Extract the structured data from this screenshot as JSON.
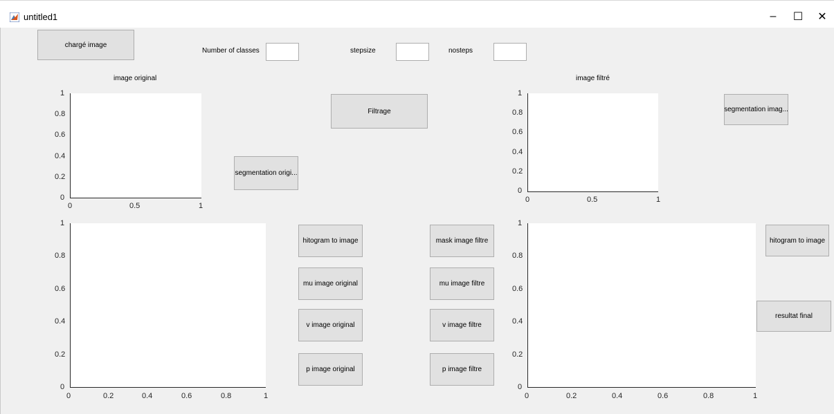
{
  "window": {
    "title": "untitled1",
    "minimize": "–",
    "maximize": "☐",
    "close": "✕"
  },
  "controls": {
    "charge_button": "chargé image",
    "classes_label": "Number of classes",
    "classes_value": "",
    "stepsize_label": "stepsize",
    "stepsize_value": "",
    "nosteps_label": "nosteps",
    "nosteps_value": "",
    "filtrage_button": "Filtrage",
    "seg_orig_button": "segmentation origi...",
    "seg_img_button": "segmentation imag...",
    "histo_left_button": "hitogram to image",
    "mask_button": "mask image filtre",
    "mu_orig_button": "mu image original",
    "mu_filtre_button": "mu image filtre",
    "v_orig_button": "v image original",
    "v_filtre_button": "v image filtre",
    "p_orig_button": "p image original",
    "p_filtre_button": "p image filtre",
    "histo_right_button": "hitogram to image",
    "resultat_button": "resultat final"
  },
  "labels": {
    "image_original": "image original",
    "image_filtre": "image filtré"
  },
  "axes": {
    "original": {
      "yticks": [
        "1",
        "0.8",
        "0.6",
        "0.4",
        "0.2",
        "0"
      ],
      "xticks": [
        "0",
        "0.5",
        "1"
      ]
    },
    "filtre": {
      "yticks": [
        "1",
        "0.8",
        "0.6",
        "0.4",
        "0.2",
        "0"
      ],
      "xticks": [
        "0",
        "0.5",
        "1"
      ]
    },
    "bottom_left": {
      "yticks": [
        "1",
        "0.8",
        "0.6",
        "0.4",
        "0.2",
        "0"
      ],
      "xticks": [
        "0",
        "0.2",
        "0.4",
        "0.6",
        "0.8",
        "1"
      ]
    },
    "bottom_right": {
      "yticks": [
        "1",
        "0.8",
        "0.6",
        "0.4",
        "0.2",
        "0"
      ],
      "xticks": [
        "0",
        "0.2",
        "0.4",
        "0.6",
        "0.8",
        "1"
      ]
    }
  }
}
